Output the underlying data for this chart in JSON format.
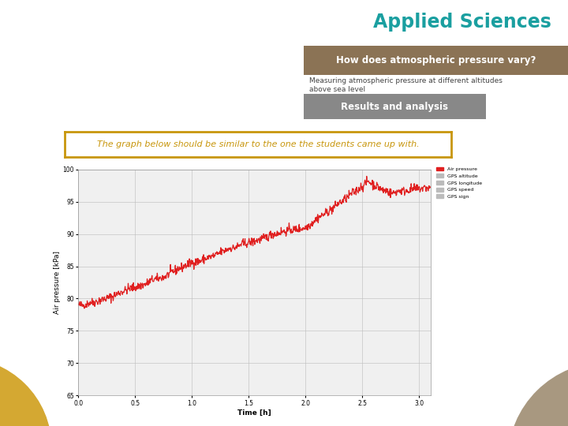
{
  "title": "Applied Sciences",
  "title_color": "#1a9fa0",
  "subtitle_banner_text": "How does atmospheric pressure vary?",
  "subtitle_banner_color": "#8B7355",
  "description_text": "Measuring atmospheric pressure at different altitudes\nabove sea level",
  "section_banner_text": "Results and analysis",
  "section_banner_color": "#888888",
  "instruction_text": "The graph below should be similar to the one the students came up with.",
  "instruction_border_color": "#C8960C",
  "ylabel": "Air pressure [kPa]",
  "xlabel": "Time [h]",
  "legend_entries": [
    "Air pressure",
    "GPS altitude",
    "GPS longitude",
    "GPS speed",
    "GPS sign"
  ],
  "line_color": "#e02020",
  "ylim": [
    65,
    100
  ],
  "xlim": [
    0,
    3.1
  ],
  "yticks": [
    65,
    70,
    75,
    80,
    85,
    90,
    95,
    100
  ],
  "xticks": [
    0,
    0.5,
    1.0,
    1.5,
    2.0,
    2.5,
    3.0
  ],
  "bg_color": "#ffffff",
  "plot_bg_color": "#f0f0f0",
  "circle_yellow_color": "#D4A832",
  "circle_grey_color": "#A89880"
}
